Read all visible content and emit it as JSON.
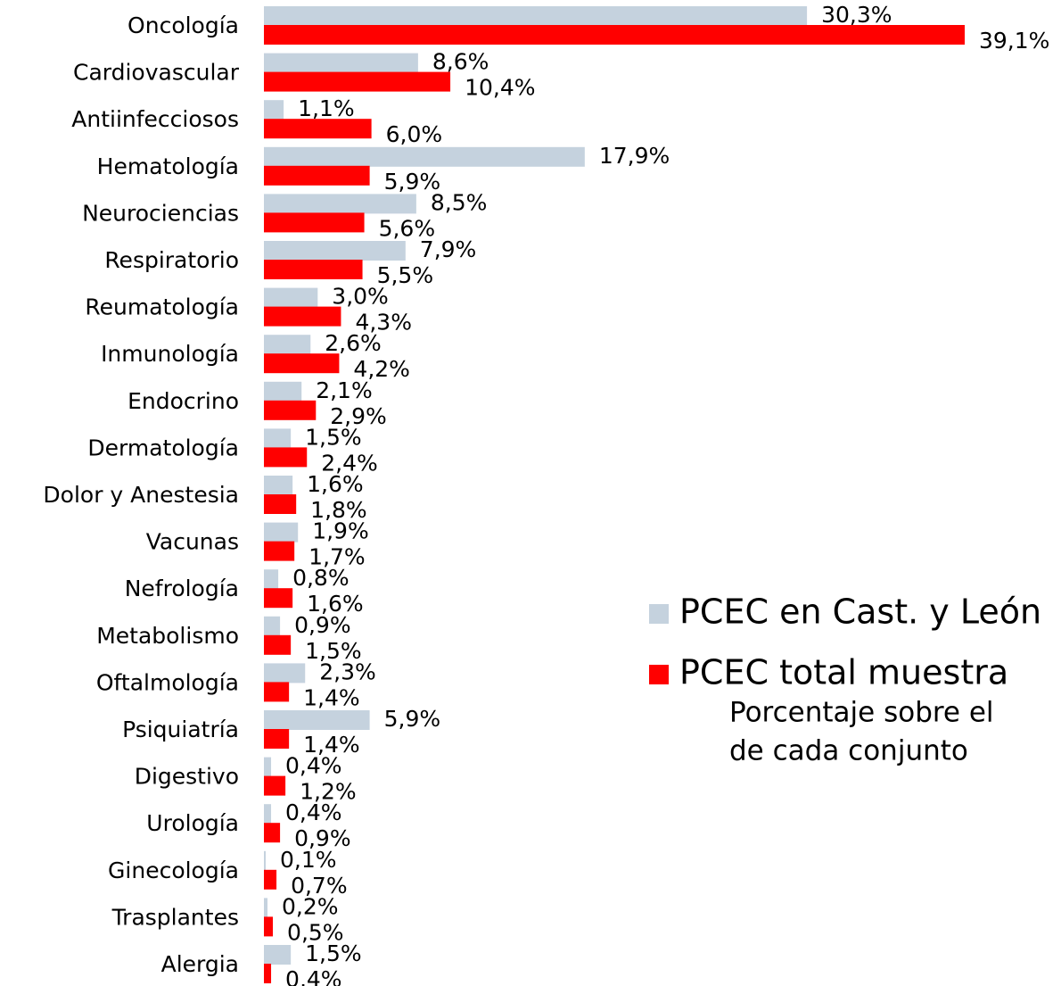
{
  "chart_data": {
    "type": "bar",
    "orientation": "horizontal",
    "categories": [
      "Oncología",
      "Cardiovascular",
      "Antiinfecciosos",
      "Hematología",
      "Neurociencias",
      "Respiratorio",
      "Reumatología",
      "Inmunología",
      "Endocrino",
      "Dermatología",
      "Dolor y Anestesia",
      "Vacunas",
      "Nefrología",
      "Metabolismo",
      "Oftalmología",
      "Psiquiatría",
      "Digestivo",
      "Urología",
      "Ginecología",
      "Trasplantes",
      "Alergia"
    ],
    "series": [
      {
        "name": "PCEC en Cast. y León",
        "color": "#c5d2de",
        "values": [
          30.3,
          8.6,
          1.1,
          17.9,
          8.5,
          7.9,
          3.0,
          2.6,
          2.1,
          1.5,
          1.6,
          1.9,
          0.8,
          0.9,
          2.3,
          5.9,
          0.4,
          0.4,
          0.1,
          0.2,
          1.5
        ],
        "value_labels": [
          "30,3%",
          "8,6%",
          "1,1%",
          "17,9%",
          "8,5%",
          "7,9%",
          "3,0%",
          "2,6%",
          "2,1%",
          "1,5%",
          "1,6%",
          "1,9%",
          "0,8%",
          "0,9%",
          "2,3%",
          "5,9%",
          "0,4%",
          "0,4%",
          "0,1%",
          "0,2%",
          "1,5%"
        ]
      },
      {
        "name": "PCEC total muestra",
        "color": "#ff0000",
        "values": [
          39.1,
          10.4,
          6.0,
          5.9,
          5.6,
          5.5,
          4.3,
          4.2,
          2.9,
          2.4,
          1.8,
          1.7,
          1.6,
          1.5,
          1.4,
          1.4,
          1.2,
          0.9,
          0.7,
          0.5,
          0.4
        ],
        "value_labels": [
          "39,1%",
          "10,4%",
          "6,0%",
          "5,9%",
          "5,6%",
          "5,5%",
          "4,3%",
          "4,2%",
          "2,9%",
          "2,4%",
          "1,8%",
          "1,7%",
          "1,6%",
          "1,5%",
          "1,4%",
          "1,4%",
          "1,2%",
          "0,9%",
          "0,7%",
          "0,5%",
          "0,4%"
        ]
      }
    ],
    "annotation": [
      "Porcentaje sobre el",
      "de cada conjunto"
    ]
  }
}
